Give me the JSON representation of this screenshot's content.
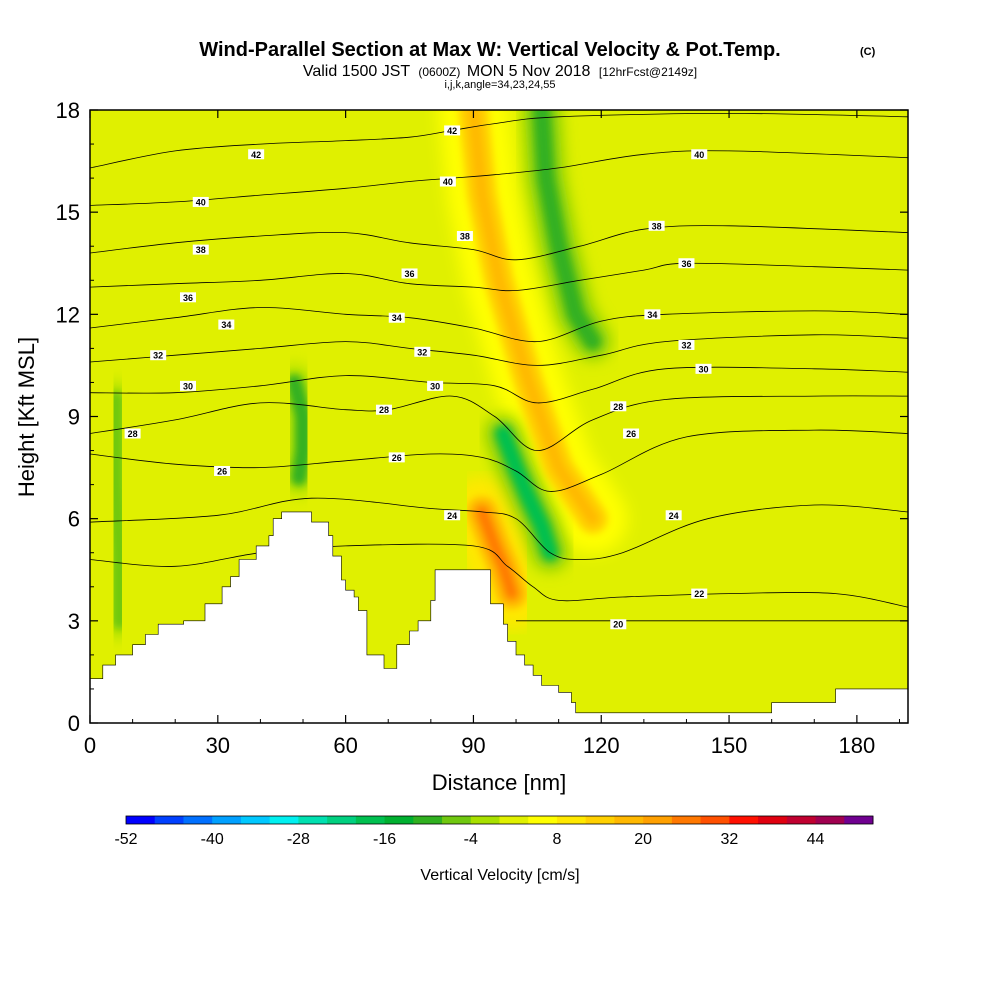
{
  "chart_data": {
    "type": "heatmap",
    "title": "Wind-Parallel Section at Max W: Vertical Velocity & Pot.Temp.",
    "copyright": "(C)",
    "subtitle_parts": [
      "Valid 1500 JST",
      "(0600Z)",
      "MON 5 Nov 2018",
      "[12hrFcst@2149z]"
    ],
    "params": "i,j,k,angle=34,23,24,55",
    "xlabel": "Distance [nm]",
    "ylabel": "Height [Kft MSL]",
    "xlim": [
      0,
      192
    ],
    "ylim": [
      0,
      18
    ],
    "x_ticks": [
      0,
      30,
      60,
      90,
      120,
      150,
      180
    ],
    "y_ticks": [
      0,
      3,
      6,
      9,
      12,
      15,
      18
    ],
    "colorbar": {
      "label": "Vertical Velocity [cm/s]",
      "tick_labels": [
        "-52",
        "-40",
        "-28",
        "-16",
        "-4",
        "8",
        "20",
        "32",
        "44"
      ],
      "tick_values": [
        -52,
        -40,
        -28,
        -16,
        -4,
        8,
        20,
        32,
        44
      ],
      "boundaries": [
        -52,
        -48,
        -44,
        -40,
        -36,
        -32,
        -28,
        -24,
        -20,
        -16,
        -12,
        -8,
        -4,
        0,
        4,
        8,
        12,
        16,
        20,
        24,
        28,
        32,
        36,
        40,
        44,
        48,
        52
      ],
      "colors": [
        "#0000ff",
        "#0040ff",
        "#0070ff",
        "#00a0ff",
        "#00c8ff",
        "#00f0f0",
        "#00e0b0",
        "#00d080",
        "#00c050",
        "#00b030",
        "#30b020",
        "#70c810",
        "#a8e000",
        "#e0f000",
        "#ffff00",
        "#ffe800",
        "#ffd000",
        "#ffb800",
        "#ffa000",
        "#ff7800",
        "#ff5000",
        "#ff1000",
        "#e00010",
        "#c00030",
        "#a00050",
        "#700090"
      ]
    },
    "terrain": [
      [
        0,
        1.3
      ],
      [
        3,
        1.3
      ],
      [
        3,
        1.7
      ],
      [
        6,
        1.7
      ],
      [
        6,
        2.0
      ],
      [
        10,
        2.0
      ],
      [
        10,
        2.3
      ],
      [
        13,
        2.3
      ],
      [
        13,
        2.6
      ],
      [
        16,
        2.6
      ],
      [
        16,
        2.9
      ],
      [
        22,
        2.9
      ],
      [
        22,
        3.0
      ],
      [
        27,
        3.0
      ],
      [
        27,
        3.5
      ],
      [
        31,
        3.5
      ],
      [
        31,
        4.0
      ],
      [
        33,
        4.0
      ],
      [
        33,
        4.3
      ],
      [
        35,
        4.3
      ],
      [
        35,
        4.8
      ],
      [
        39,
        4.8
      ],
      [
        39,
        5.2
      ],
      [
        42,
        5.2
      ],
      [
        42,
        5.5
      ],
      [
        43,
        5.5
      ],
      [
        43,
        6.0
      ],
      [
        45,
        6.0
      ],
      [
        45,
        6.2
      ],
      [
        52,
        6.2
      ],
      [
        52,
        5.9
      ],
      [
        56,
        5.9
      ],
      [
        56,
        5.5
      ],
      [
        57,
        5.5
      ],
      [
        57,
        4.9
      ],
      [
        59,
        4.9
      ],
      [
        59,
        4.2
      ],
      [
        60,
        4.2
      ],
      [
        60,
        3.9
      ],
      [
        62,
        3.9
      ],
      [
        62,
        3.7
      ],
      [
        63,
        3.7
      ],
      [
        63,
        3.3
      ],
      [
        65,
        3.3
      ],
      [
        65,
        2.0
      ],
      [
        69,
        2.0
      ],
      [
        69,
        1.6
      ],
      [
        72,
        1.6
      ],
      [
        72,
        2.3
      ],
      [
        75,
        2.3
      ],
      [
        75,
        2.7
      ],
      [
        77,
        2.7
      ],
      [
        77,
        3.0
      ],
      [
        80,
        3.0
      ],
      [
        80,
        3.6
      ],
      [
        81,
        3.6
      ],
      [
        81,
        4.5
      ],
      [
        94,
        4.5
      ],
      [
        94,
        3.5
      ],
      [
        97,
        3.5
      ],
      [
        97,
        2.9
      ],
      [
        98,
        2.9
      ],
      [
        98,
        2.4
      ],
      [
        100,
        2.4
      ],
      [
        100,
        2.0
      ],
      [
        102,
        2.0
      ],
      [
        102,
        1.7
      ],
      [
        104,
        1.7
      ],
      [
        104,
        1.4
      ],
      [
        106,
        1.4
      ],
      [
        106,
        1.1
      ],
      [
        110,
        1.1
      ],
      [
        110,
        0.9
      ],
      [
        113,
        0.9
      ],
      [
        113,
        0.6
      ],
      [
        114,
        0.6
      ],
      [
        114,
        0.3
      ],
      [
        160,
        0.3
      ],
      [
        160,
        0.6
      ],
      [
        175,
        0.6
      ],
      [
        175,
        1.0
      ],
      [
        192,
        1.0
      ]
    ],
    "updraft_bands": [
      {
        "name": "upper-updraft",
        "w": 18,
        "spine": [
          [
            90,
            18.0
          ],
          [
            92,
            15.5
          ],
          [
            96,
            13.0
          ],
          [
            103,
            10.0
          ],
          [
            110,
            7.5
          ],
          [
            118,
            6.0
          ]
        ]
      },
      {
        "name": "lower-updraft",
        "w": 26,
        "spine": [
          [
            92,
            6.2
          ],
          [
            95,
            5.2
          ],
          [
            97,
            4.6
          ],
          [
            99,
            3.8
          ]
        ]
      }
    ],
    "downdraft_bands": [
      {
        "name": "main-downdraft",
        "w": -18,
        "spine": [
          [
            97,
            8.5
          ],
          [
            100,
            7.5
          ],
          [
            103,
            6.6
          ],
          [
            106,
            5.8
          ],
          [
            108,
            5.0
          ]
        ]
      },
      {
        "name": "upper-downdraft",
        "w": -12,
        "spine": [
          [
            106,
            18.0
          ],
          [
            107,
            16.0
          ],
          [
            110,
            14.0
          ],
          [
            114,
            12.0
          ],
          [
            118,
            11.2
          ]
        ]
      },
      {
        "name": "mid-downdraft",
        "w": -10,
        "spine": [
          [
            48,
            10.0
          ],
          [
            50,
            9.0
          ],
          [
            50,
            8.0
          ],
          [
            49,
            7.2
          ]
        ]
      },
      {
        "name": "left-downdraft",
        "w": -6,
        "spine": [
          [
            6,
            9.5
          ],
          [
            6,
            7.0
          ],
          [
            7,
            5.0
          ],
          [
            7,
            3.0
          ]
        ]
      }
    ],
    "isentropes": {
      "levels": [
        20,
        22,
        24,
        26,
        28,
        30,
        32,
        34,
        36,
        38,
        40,
        42
      ],
      "profiles": {
        "20": [
          [
            100,
            3.0
          ],
          [
            120,
            3.0
          ],
          [
            150,
            3.0
          ],
          [
            192,
            3.0
          ]
        ],
        "22": [
          [
            0,
            4.8
          ],
          [
            20,
            4.6
          ],
          [
            40,
            5.0
          ],
          [
            60,
            5.2
          ],
          [
            90,
            5.2
          ],
          [
            98,
            4.6
          ],
          [
            104,
            4.0
          ],
          [
            110,
            3.6
          ],
          [
            125,
            3.7
          ],
          [
            150,
            3.8
          ],
          [
            175,
            3.8
          ],
          [
            192,
            3.4
          ]
        ],
        "24": [
          [
            0,
            5.9
          ],
          [
            30,
            6.1
          ],
          [
            52,
            6.6
          ],
          [
            80,
            6.3
          ],
          [
            92,
            6.2
          ],
          [
            100,
            6.0
          ],
          [
            108,
            5.0
          ],
          [
            115,
            4.8
          ],
          [
            125,
            5.0
          ],
          [
            145,
            6.0
          ],
          [
            170,
            6.4
          ],
          [
            192,
            6.2
          ]
        ],
        "26": [
          [
            0,
            7.9
          ],
          [
            20,
            7.6
          ],
          [
            40,
            7.5
          ],
          [
            60,
            7.7
          ],
          [
            80,
            7.9
          ],
          [
            92,
            7.8
          ],
          [
            100,
            7.4
          ],
          [
            108,
            6.8
          ],
          [
            120,
            7.3
          ],
          [
            140,
            8.4
          ],
          [
            170,
            8.6
          ],
          [
            192,
            8.5
          ]
        ],
        "28": [
          [
            0,
            8.5
          ],
          [
            20,
            8.9
          ],
          [
            40,
            9.4
          ],
          [
            60,
            9.2
          ],
          [
            70,
            9.2
          ],
          [
            85,
            9.6
          ],
          [
            95,
            9.0
          ],
          [
            105,
            8.0
          ],
          [
            118,
            8.9
          ],
          [
            135,
            9.5
          ],
          [
            170,
            9.6
          ],
          [
            192,
            9.6
          ]
        ],
        "30": [
          [
            0,
            9.7
          ],
          [
            20,
            9.7
          ],
          [
            40,
            9.9
          ],
          [
            60,
            10.2
          ],
          [
            80,
            10.0
          ],
          [
            95,
            9.9
          ],
          [
            105,
            9.4
          ],
          [
            118,
            9.8
          ],
          [
            135,
            10.4
          ],
          [
            170,
            10.4
          ],
          [
            192,
            10.3
          ]
        ],
        "32": [
          [
            0,
            10.6
          ],
          [
            20,
            10.8
          ],
          [
            40,
            11.0
          ],
          [
            60,
            11.2
          ],
          [
            75,
            11.0
          ],
          [
            90,
            10.8
          ],
          [
            105,
            10.5
          ],
          [
            120,
            10.8
          ],
          [
            135,
            11.2
          ],
          [
            170,
            11.4
          ],
          [
            192,
            11.3
          ]
        ],
        "34": [
          [
            0,
            11.6
          ],
          [
            20,
            11.9
          ],
          [
            40,
            12.2
          ],
          [
            60,
            12.0
          ],
          [
            75,
            11.9
          ],
          [
            90,
            11.6
          ],
          [
            105,
            11.2
          ],
          [
            120,
            11.8
          ],
          [
            135,
            12.0
          ],
          [
            170,
            12.1
          ],
          [
            192,
            12.0
          ]
        ],
        "36": [
          [
            0,
            12.8
          ],
          [
            20,
            12.9
          ],
          [
            40,
            13.0
          ],
          [
            60,
            13.2
          ],
          [
            75,
            12.9
          ],
          [
            90,
            12.8
          ],
          [
            100,
            12.7
          ],
          [
            115,
            13.0
          ],
          [
            130,
            13.3
          ],
          [
            140,
            13.5
          ],
          [
            170,
            13.4
          ],
          [
            192,
            13.3
          ]
        ],
        "38": [
          [
            0,
            13.8
          ],
          [
            20,
            14.1
          ],
          [
            40,
            14.3
          ],
          [
            60,
            14.4
          ],
          [
            75,
            14.1
          ],
          [
            90,
            13.9
          ],
          [
            100,
            13.6
          ],
          [
            115,
            14.0
          ],
          [
            130,
            14.5
          ],
          [
            150,
            14.6
          ],
          [
            192,
            14.4
          ]
        ],
        "40": [
          [
            0,
            15.2
          ],
          [
            20,
            15.3
          ],
          [
            40,
            15.5
          ],
          [
            60,
            15.7
          ],
          [
            75,
            15.9
          ],
          [
            85,
            16.0
          ],
          [
            95,
            16.1
          ],
          [
            110,
            16.3
          ],
          [
            130,
            16.7
          ],
          [
            150,
            16.8
          ],
          [
            192,
            16.6
          ]
        ],
        "42": [
          [
            0,
            16.3
          ],
          [
            20,
            16.8
          ],
          [
            40,
            17.0
          ],
          [
            60,
            17.1
          ],
          [
            75,
            17.2
          ],
          [
            85,
            17.4
          ],
          [
            95,
            17.6
          ],
          [
            110,
            17.8
          ],
          [
            150,
            17.9
          ],
          [
            192,
            17.8
          ]
        ]
      },
      "labels": [
        {
          "text": "42",
          "x": 39,
          "y": 16.7
        },
        {
          "text": "42",
          "x": 85,
          "y": 17.4
        },
        {
          "text": "40",
          "x": 26,
          "y": 15.3
        },
        {
          "text": "40",
          "x": 84,
          "y": 15.9
        },
        {
          "text": "40",
          "x": 143,
          "y": 16.7
        },
        {
          "text": "38",
          "x": 26,
          "y": 13.9
        },
        {
          "text": "38",
          "x": 88,
          "y": 14.3
        },
        {
          "text": "38",
          "x": 133,
          "y": 14.6
        },
        {
          "text": "36",
          "x": 23,
          "y": 12.5
        },
        {
          "text": "36",
          "x": 75,
          "y": 13.2
        },
        {
          "text": "36",
          "x": 140,
          "y": 13.5
        },
        {
          "text": "34",
          "x": 32,
          "y": 11.7
        },
        {
          "text": "34",
          "x": 72,
          "y": 11.9
        },
        {
          "text": "34",
          "x": 132,
          "y": 12.0
        },
        {
          "text": "32",
          "x": 16,
          "y": 10.8
        },
        {
          "text": "32",
          "x": 78,
          "y": 10.9
        },
        {
          "text": "32",
          "x": 140,
          "y": 11.1
        },
        {
          "text": "30",
          "x": 23,
          "y": 9.9
        },
        {
          "text": "30",
          "x": 81,
          "y": 9.9
        },
        {
          "text": "30",
          "x": 144,
          "y": 10.4
        },
        {
          "text": "28",
          "x": 10,
          "y": 8.5
        },
        {
          "text": "28",
          "x": 69,
          "y": 9.2
        },
        {
          "text": "28",
          "x": 124,
          "y": 9.3
        },
        {
          "text": "26",
          "x": 31,
          "y": 7.4
        },
        {
          "text": "26",
          "x": 72,
          "y": 7.8
        },
        {
          "text": "26",
          "x": 127,
          "y": 8.5
        },
        {
          "text": "24",
          "x": 85,
          "y": 6.1
        },
        {
          "text": "24",
          "x": 137,
          "y": 6.1
        },
        {
          "text": "22",
          "x": 143,
          "y": 3.8
        },
        {
          "text": "20",
          "x": 124,
          "y": 2.9
        }
      ]
    }
  }
}
